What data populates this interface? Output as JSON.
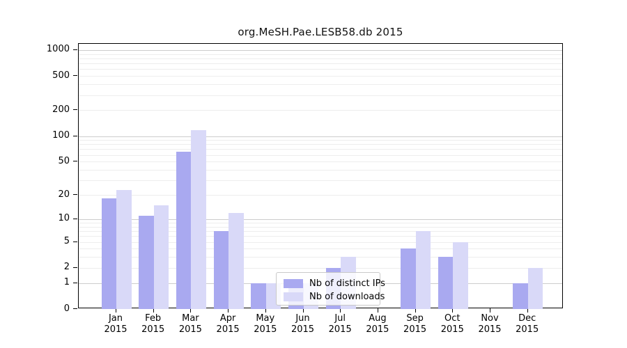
{
  "title": "org.MeSH.Pae.LESB58.db 2015",
  "chart_data": {
    "type": "bar",
    "title": "org.MeSH.Pae.LESB58.db 2015",
    "categories": [
      "Jan 2015",
      "Feb 2015",
      "Mar 2015",
      "Apr 2015",
      "May 2015",
      "Jun 2015",
      "Jul 2015",
      "Aug 2015",
      "Sep 2015",
      "Oct 2015",
      "Nov 2015",
      "Dec 2015"
    ],
    "month_labels": [
      "Jan",
      "Feb",
      "Mar",
      "Apr",
      "May",
      "Jun",
      "Jul",
      "Aug",
      "Sep",
      "Oct",
      "Nov",
      "Dec"
    ],
    "year_label": "2015",
    "series": [
      {
        "name": "Nb of distinct IPs",
        "color": "#a9a9f0",
        "values": [
          18,
          11,
          65,
          7,
          1,
          1,
          2,
          0,
          4,
          3,
          0,
          1
        ]
      },
      {
        "name": "Nb of downloads",
        "color": "#d9d9f8",
        "values": [
          23,
          15,
          117,
          12,
          1,
          1,
          3,
          0,
          7,
          5,
          0,
          2
        ]
      }
    ],
    "y_scale": "log10(value+1)",
    "y_tick_labels": [
      "1000",
      "500",
      "200",
      "100",
      "50",
      "20",
      "10",
      "5",
      "2",
      "1",
      "0"
    ],
    "y_tick_values": [
      1000,
      500,
      200,
      100,
      50,
      20,
      10,
      5,
      2,
      1,
      0
    ],
    "ylim": [
      0,
      1180
    ],
    "grid": "horizontal",
    "grid_minor_values": [
      2,
      3,
      4,
      5,
      6,
      7,
      8,
      9,
      20,
      30,
      40,
      50,
      60,
      70,
      80,
      90,
      200,
      300,
      400,
      500,
      600,
      700,
      800,
      900
    ],
    "grid_major_values": [
      1,
      10,
      100,
      1000
    ],
    "legend_position": "lower-center",
    "xlabel": "",
    "ylabel": ""
  }
}
